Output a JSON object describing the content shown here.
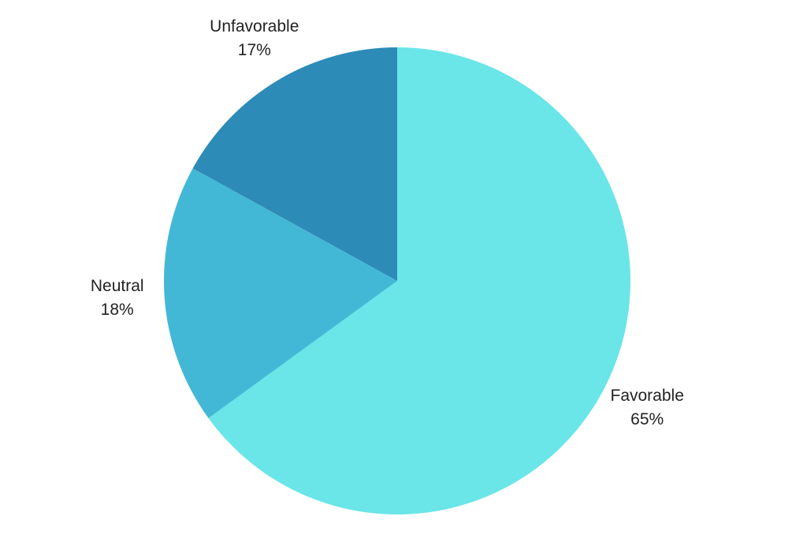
{
  "chart_data": {
    "type": "pie",
    "categories": [
      "Favorable",
      "Neutral",
      "Unfavorable"
    ],
    "values": [
      65,
      18,
      17
    ],
    "value_labels": [
      "65%",
      "18%",
      "17%"
    ],
    "colors": [
      "#6ae5e8",
      "#43b8d6",
      "#2d8bb8"
    ]
  }
}
